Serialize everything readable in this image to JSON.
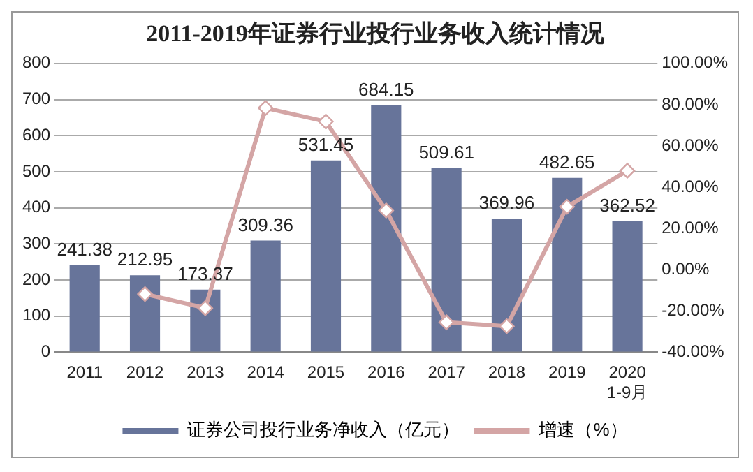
{
  "chart_data": {
    "type": "bar",
    "title": "2011-2019年证券行业投行业务收入统计情况",
    "categories": [
      "2011",
      "2012",
      "2013",
      "2014",
      "2015",
      "2016",
      "2017",
      "2018",
      "2019",
      "2020\n1-9月"
    ],
    "series": [
      {
        "name": "证券公司投行业务净收入（亿元）",
        "color": "#67749a",
        "values": [
          241.38,
          212.95,
          173.37,
          309.36,
          531.45,
          684.15,
          509.61,
          369.96,
          482.65,
          362.52
        ],
        "value_labels": [
          "241.38",
          "212.95",
          "173.37",
          "309.36",
          "531.45",
          "684.15",
          "509.61",
          "369.96",
          "482.65",
          "362.52"
        ]
      },
      {
        "name": "增速（%）",
        "type": "line",
        "axis": "y2",
        "color": "#d4a5a5",
        "values": [
          null,
          -11.8,
          -18.6,
          78.4,
          71.8,
          28.7,
          -25.5,
          -27.4,
          30.5,
          48
        ]
      }
    ],
    "ylim": [
      0,
      800
    ],
    "yticks": [
      0,
      100,
      200,
      300,
      400,
      500,
      600,
      700,
      800
    ],
    "y2lim": [
      -40,
      100
    ],
    "y2ticks": [
      {
        "value": -40,
        "label": "-40.00%"
      },
      {
        "value": -20,
        "label": "-20.00%"
      },
      {
        "value": 0,
        "label": "0.00%"
      },
      {
        "value": 20,
        "label": "20.00%"
      },
      {
        "value": 40,
        "label": "40.00%"
      },
      {
        "value": 60,
        "label": "60.00%"
      },
      {
        "value": 80,
        "label": "80.00%"
      },
      {
        "value": 100,
        "label": "100.00%"
      }
    ],
    "grid": "y",
    "legend": "bottom",
    "marker": "diamond"
  }
}
